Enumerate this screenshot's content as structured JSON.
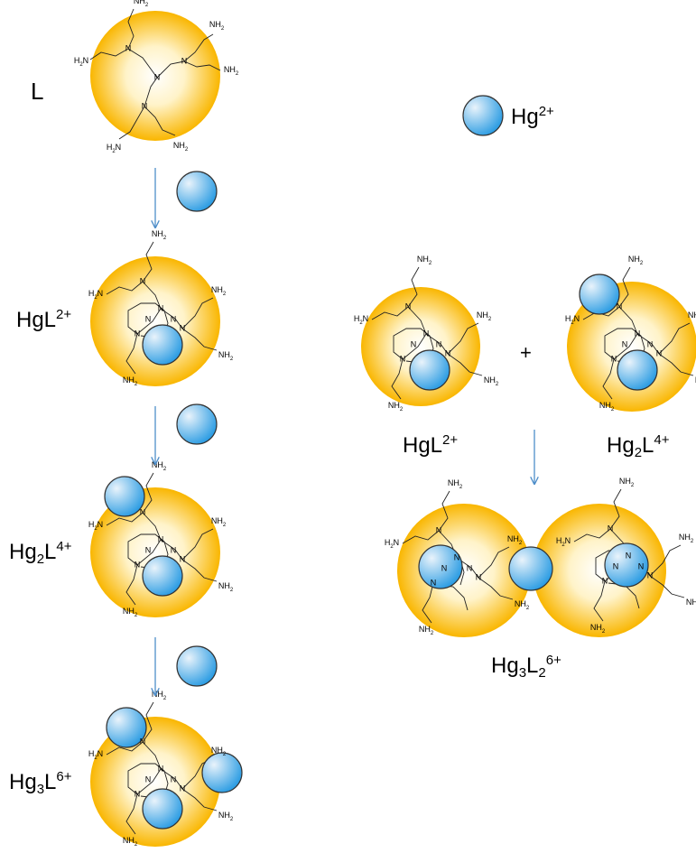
{
  "colors": {
    "core_center": "#ffffff",
    "core_edge": "#f9b600",
    "ion_light": "#e9f3fb",
    "ion_dark": "#2d9de3",
    "arrow": "#4e8ec9",
    "bond": "#222222"
  },
  "legend": {
    "label_main": "Hg",
    "label_sup": "2+"
  },
  "left_column": [
    {
      "label_main": "L"
    },
    {
      "label_main": "HgL",
      "label_sup": "2+"
    },
    {
      "label_main": "Hg",
      "label_sub": "2",
      "label_mid": "L",
      "label_sup": "4+"
    },
    {
      "label_main": "Hg",
      "label_sub": "3",
      "label_mid": "L",
      "label_sup": "6+"
    }
  ],
  "right_column": {
    "plus": "+",
    "species_a": {
      "label_main": "HgL",
      "label_sup": "2+"
    },
    "species_b": {
      "label_main": "Hg",
      "label_sub": "2",
      "label_mid": "L",
      "label_sup": "4+"
    },
    "product": {
      "label_main": "Hg",
      "label_sub": "3",
      "label_mid": "L",
      "label_sub2": "2",
      "label_sup": "6+"
    }
  },
  "atoms": {
    "nitrogen": "N",
    "amine": "NH",
    "amine_sub": "2",
    "amine_left": "H",
    "amine_left_sub": "2",
    "amine_left_tail": "N"
  }
}
